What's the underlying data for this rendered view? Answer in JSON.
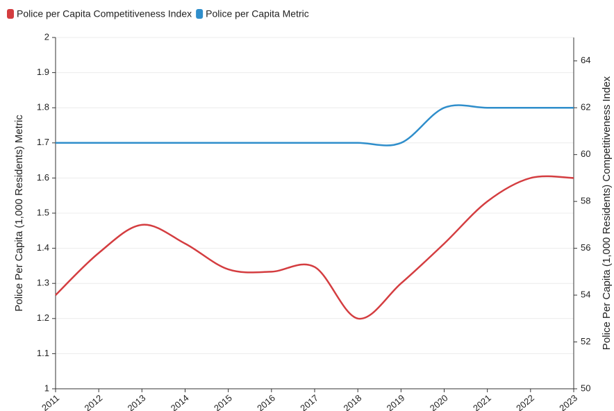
{
  "chart_data": {
    "type": "line",
    "categories": [
      "2011",
      "2012",
      "2013",
      "2014",
      "2015",
      "2016",
      "2017",
      "2018",
      "2019",
      "2020",
      "2021",
      "2022",
      "2023"
    ],
    "series": [
      {
        "name": "Police per Capita Competitiveness Index",
        "color": "#d43d40",
        "axis": "y2",
        "values": [
          54,
          55.8,
          57,
          56.2,
          55.1,
          55,
          55.2,
          53,
          54.5,
          56.2,
          58,
          59,
          59
        ]
      },
      {
        "name": "Police per Capita Metric",
        "color": "#2f8ecb",
        "values": [
          1.7,
          1.7,
          1.7,
          1.7,
          1.7,
          1.7,
          1.7,
          1.7,
          1.7,
          1.8,
          1.8,
          1.8,
          1.8
        ]
      }
    ],
    "ylabel": "Police Per Capita (1,000 Residents) Metric",
    "y2label": "Police Per Capita (1,000 Residents) Competitiveness Index",
    "ylim": [
      1,
      2
    ],
    "yticks": [
      1,
      1.1,
      1.2,
      1.3,
      1.4,
      1.5,
      1.6,
      1.7,
      1.8,
      1.9,
      2
    ],
    "y2lim": [
      50,
      65
    ],
    "y2ticks": [
      50,
      52,
      54,
      56,
      58,
      60,
      62,
      64
    ],
    "grid": true,
    "legend": "top-left"
  }
}
